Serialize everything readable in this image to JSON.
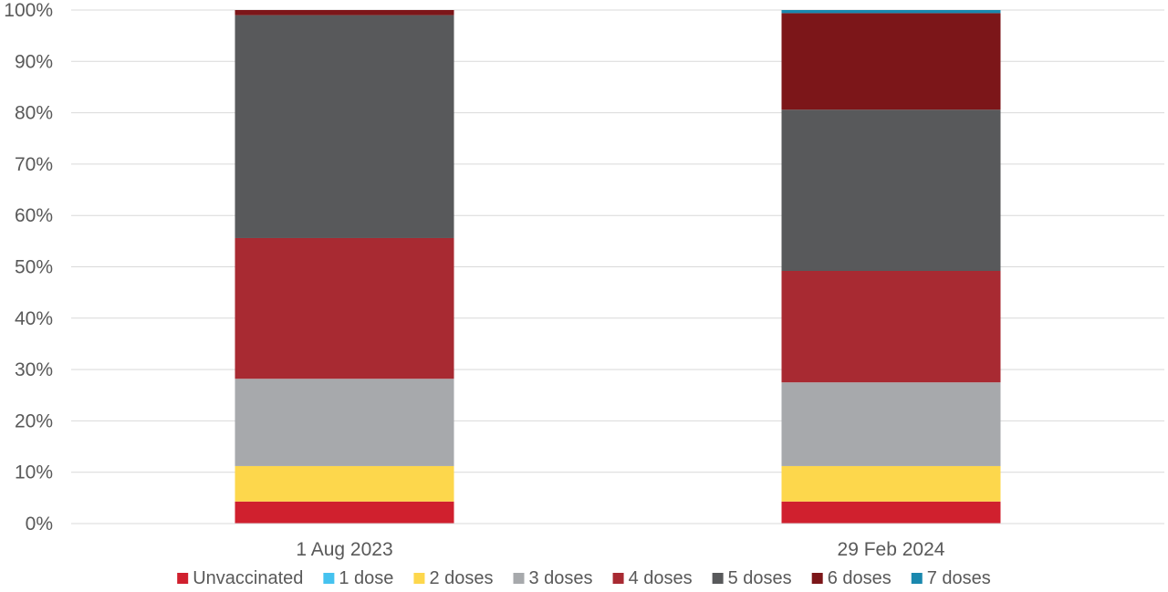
{
  "chart_data": {
    "type": "bar",
    "stacked": true,
    "percent": true,
    "categories": [
      "1 Aug 2023",
      "29 Feb 2024"
    ],
    "ylim": [
      0,
      100
    ],
    "yticks": [
      "0%",
      "10%",
      "20%",
      "30%",
      "40%",
      "50%",
      "60%",
      "70%",
      "80%",
      "90%",
      "100%"
    ],
    "grid": true,
    "legend_position": "bottom",
    "series": [
      {
        "name": "Unvaccinated",
        "color": "#d0202e",
        "values": [
          4.3,
          4.3
        ]
      },
      {
        "name": "1 dose",
        "color": "#45c2ef",
        "values": [
          0.0,
          0.0
        ]
      },
      {
        "name": "2 doses",
        "color": "#fdd74c",
        "values": [
          6.9,
          6.9
        ]
      },
      {
        "name": "3 doses",
        "color": "#a7a9ac",
        "values": [
          17.0,
          16.3
        ]
      },
      {
        "name": "4 doses",
        "color": "#a82a32",
        "values": [
          27.4,
          21.7
        ]
      },
      {
        "name": "5 doses",
        "color": "#58595b",
        "values": [
          43.4,
          31.4
        ]
      },
      {
        "name": "6 doses",
        "color": "#7c1619",
        "values": [
          1.0,
          18.8
        ]
      },
      {
        "name": "7 doses",
        "color": "#1a88ae",
        "values": [
          0.0,
          0.6
        ]
      }
    ]
  }
}
